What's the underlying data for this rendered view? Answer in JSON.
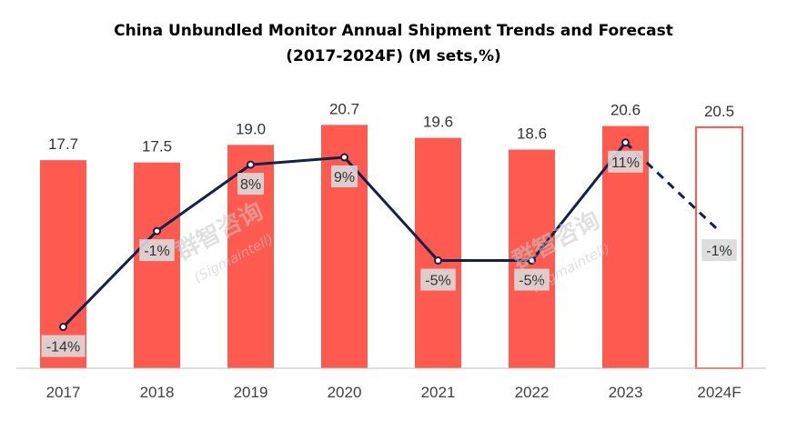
{
  "chart_data": {
    "type": "bar",
    "title": "China Unbundled Monitor Annual Shipment Trends and Forecast",
    "subtitle": "(2017-2024F) (M sets,%)",
    "categories": [
      "2017",
      "2018",
      "2019",
      "2020",
      "2021",
      "2022",
      "2023",
      "2024F"
    ],
    "series": [
      {
        "type": "bar",
        "values": [
          17.7,
          17.5,
          19.0,
          20.7,
          19.6,
          18.6,
          20.6,
          20.5
        ],
        "forecast": [
          false,
          false,
          false,
          false,
          false,
          false,
          false,
          true
        ],
        "color": "#ff5a4f",
        "forecast_style": "outline"
      },
      {
        "type": "line",
        "values": [
          -14,
          -1,
          8,
          9,
          -5,
          -5,
          11,
          -1
        ],
        "labels": [
          "-14%",
          "-1%",
          "8%",
          "9%",
          "-5%",
          "-5%",
          "11%",
          "-1%"
        ],
        "forecast_dashed_last_segment": true,
        "color": "#14214d"
      }
    ],
    "bar_labels": [
      "17.7",
      "17.5",
      "19.0",
      "20.7",
      "19.6",
      "18.6",
      "20.6",
      "20.5"
    ],
    "ylim_bars": [
      0,
      21.5
    ],
    "ylim_line": [
      -18,
      18
    ],
    "grid": false,
    "legend": "none"
  },
  "watermarks": [
    {
      "line1": "群智咨询",
      "line2": "(Sigmaintell)"
    },
    {
      "line1": "群智咨询",
      "line2": "(Sigmaintell)"
    }
  ]
}
